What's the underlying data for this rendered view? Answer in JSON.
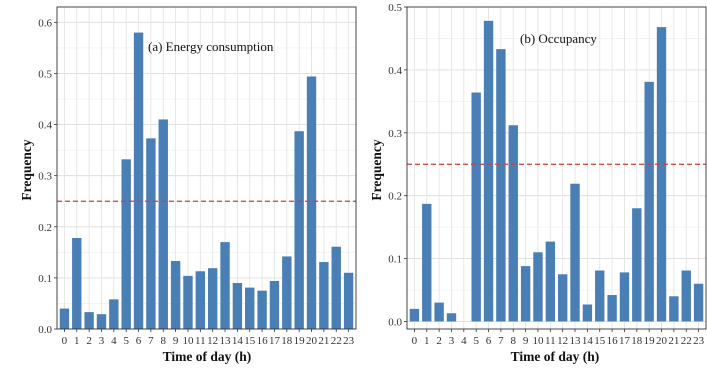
{
  "chart_data": [
    {
      "type": "bar",
      "title": "(a) Energy consumption",
      "xlabel": "Time of day (h)",
      "ylabel": "Frequency",
      "ylim": [
        0,
        0.63
      ],
      "yticks": [
        "0.0",
        "0.1",
        "0.2",
        "0.3",
        "0.4",
        "0.5",
        "0.6"
      ],
      "categories": [
        "0",
        "1",
        "2",
        "3",
        "4",
        "5",
        "6",
        "7",
        "8",
        "9",
        "10",
        "11",
        "12",
        "13",
        "14",
        "15",
        "16",
        "17",
        "18",
        "19",
        "20",
        "21",
        "22",
        "23"
      ],
      "values": [
        0.04,
        0.178,
        0.033,
        0.029,
        0.058,
        0.332,
        0.58,
        0.373,
        0.41,
        0.133,
        0.104,
        0.113,
        0.119,
        0.17,
        0.09,
        0.081,
        0.075,
        0.094,
        0.142,
        0.387,
        0.494,
        0.131,
        0.161,
        0.11
      ],
      "reference_line": 0.25,
      "bar_color": "#4a7fb5",
      "reference_color": "#d43f3a",
      "grid": true
    },
    {
      "type": "bar",
      "title": "(b) Occupancy",
      "xlabel": "Time of day (h)",
      "ylabel": "Frequency",
      "ylim": [
        -0.012,
        0.5
      ],
      "yticks": [
        "0.0",
        "0.1",
        "0.2",
        "0.3",
        "0.4",
        "0.5"
      ],
      "categories": [
        "0",
        "1",
        "2",
        "3",
        "4",
        "5",
        "6",
        "7",
        "8",
        "9",
        "10",
        "11",
        "12",
        "13",
        "14",
        "15",
        "16",
        "17",
        "18",
        "19",
        "20",
        "21",
        "22",
        "23"
      ],
      "values": [
        0.02,
        0.187,
        0.03,
        0.013,
        0,
        0.364,
        0.478,
        0.433,
        0.312,
        0.088,
        0.11,
        0.127,
        0.075,
        0.219,
        0.027,
        0.081,
        0.042,
        0.078,
        0.18,
        0.381,
        0.468,
        0.04,
        0.081,
        0.06
      ],
      "reference_line": 0.25,
      "bar_color": "#4a7fb5",
      "reference_color": "#d43f3a",
      "grid": true
    }
  ]
}
